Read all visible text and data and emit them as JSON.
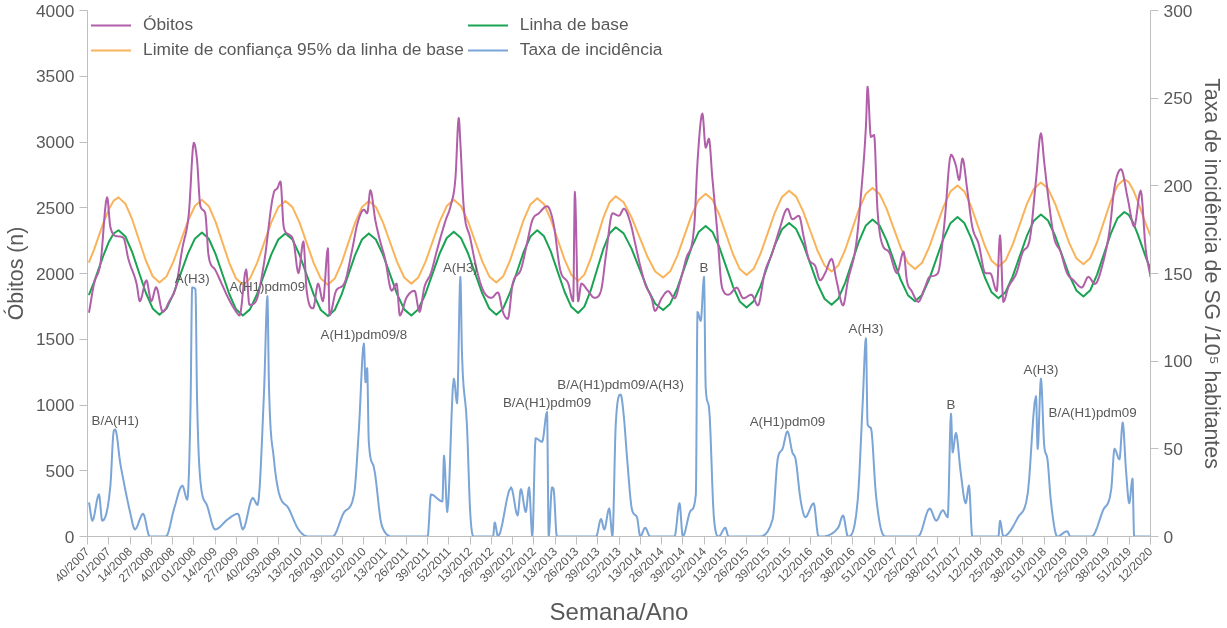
{
  "chart_data": {
    "type": "line",
    "xlabel": "Semana/Ano",
    "ylabel": "Óbitos (n)",
    "y2label": "Taxa de incidência de SG /10⁵ habitantes",
    "xlim": [
      "2007-10-01",
      "2020-03-16"
    ],
    "ylim": [
      0,
      4000
    ],
    "y2lim": [
      0,
      300
    ],
    "yticks": [
      0,
      500,
      1000,
      1500,
      2000,
      2500,
      3000,
      3500,
      4000
    ],
    "y2ticks": [
      0,
      50,
      100,
      150,
      200,
      250,
      300
    ],
    "xticks": [
      {
        "value": "2007-10-01",
        "label": "40/2007"
      },
      {
        "value": "2007-12-31",
        "label": "01/2007"
      },
      {
        "value": "2008-03-31",
        "label": "14/2008"
      },
      {
        "value": "2008-06-30",
        "label": "27/2008"
      },
      {
        "value": "2008-09-29",
        "label": "40/2008"
      },
      {
        "value": "2008-12-29",
        "label": "01/2008"
      },
      {
        "value": "2009-03-30",
        "label": "14/2009"
      },
      {
        "value": "2009-06-29",
        "label": "27/2009"
      },
      {
        "value": "2009-09-28",
        "label": "40/2009"
      },
      {
        "value": "2009-12-28",
        "label": "53/2009"
      },
      {
        "value": "2010-03-29",
        "label": "13/2010"
      },
      {
        "value": "2010-06-28",
        "label": "26/2010"
      },
      {
        "value": "2010-09-27",
        "label": "39/2010"
      },
      {
        "value": "2010-12-27",
        "label": "52/2010"
      },
      {
        "value": "2011-03-28",
        "label": "13/2011"
      },
      {
        "value": "2011-06-27",
        "label": "26/2011"
      },
      {
        "value": "2011-09-26",
        "label": "39/2011"
      },
      {
        "value": "2011-12-26",
        "label": "52/2011"
      },
      {
        "value": "2012-03-26",
        "label": "13/2012"
      },
      {
        "value": "2012-06-25",
        "label": "26/2012"
      },
      {
        "value": "2012-09-24",
        "label": "39/2012"
      },
      {
        "value": "2012-12-24",
        "label": "52/2012"
      },
      {
        "value": "2013-03-25",
        "label": "13/2013"
      },
      {
        "value": "2013-06-24",
        "label": "26/2013"
      },
      {
        "value": "2013-09-23",
        "label": "39/2013"
      },
      {
        "value": "2013-12-23",
        "label": "52/2013"
      },
      {
        "value": "2014-03-24",
        "label": "13/2014"
      },
      {
        "value": "2014-06-23",
        "label": "26/2014"
      },
      {
        "value": "2014-09-22",
        "label": "39/2014"
      },
      {
        "value": "2014-12-22",
        "label": "52/2014"
      },
      {
        "value": "2015-03-23",
        "label": "13/2015"
      },
      {
        "value": "2015-06-22",
        "label": "26/2015"
      },
      {
        "value": "2015-09-21",
        "label": "39/2015"
      },
      {
        "value": "2015-12-21",
        "label": "52/2015"
      },
      {
        "value": "2016-03-21",
        "label": "12/2016"
      },
      {
        "value": "2016-06-20",
        "label": "25/2016"
      },
      {
        "value": "2016-09-19",
        "label": "38/2016"
      },
      {
        "value": "2016-12-19",
        "label": "51/2016"
      },
      {
        "value": "2017-03-20",
        "label": "12/2017"
      },
      {
        "value": "2017-06-19",
        "label": "25/2017"
      },
      {
        "value": "2017-09-18",
        "label": "38/2017"
      },
      {
        "value": "2017-12-18",
        "label": "51/2017"
      },
      {
        "value": "2018-03-19",
        "label": "12/2018"
      },
      {
        "value": "2018-06-18",
        "label": "25/2018"
      },
      {
        "value": "2018-09-17",
        "label": "38/2018"
      },
      {
        "value": "2018-12-17",
        "label": "51/2018"
      },
      {
        "value": "2019-03-18",
        "label": "12/2019"
      },
      {
        "value": "2019-06-17",
        "label": "25/2019"
      },
      {
        "value": "2019-09-16",
        "label": "38/2019"
      },
      {
        "value": "2019-12-16",
        "label": "51/2019"
      },
      {
        "value": "2020-03-16",
        "label": "12/2020"
      }
    ],
    "grid": false,
    "legend": "top left",
    "marker": "none",
    "line_style": "solid",
    "series": [
      {
        "name": "Taxa de incidência",
        "color": "#7ba5d6",
        "axis": "y2",
        "x": [
          "2007-10-08",
          "2007-10-22",
          "2007-11-19",
          "2007-12-03",
          "2008-01-07",
          "2008-01-21",
          "2008-01-28",
          "2008-02-18",
          "2008-03-03",
          "2008-03-31",
          "2008-04-21",
          "2008-05-26",
          "2008-06-23",
          "2008-09-01",
          "2008-10-06",
          "2008-11-10",
          "2008-12-01",
          "2008-12-15",
          "2008-12-22",
          "2009-01-05",
          "2009-01-12",
          "2009-01-26",
          "2009-02-23",
          "2009-03-30",
          "2009-05-25",
          "2009-07-06",
          "2009-07-27",
          "2009-09-07",
          "2009-09-28",
          "2009-10-26",
          "2009-11-09",
          "2009-11-16",
          "2009-12-07",
          "2009-12-28",
          "2010-02-08",
          "2010-03-22",
          "2010-05-03",
          "2010-08-16",
          "2010-10-04",
          "2010-11-15",
          "2010-12-06",
          "2010-12-27",
          "2011-01-03",
          "2011-01-10",
          "2011-01-17",
          "2011-02-07",
          "2011-03-14",
          "2011-05-02",
          "2011-09-26",
          "2011-10-10",
          "2011-11-28",
          "2011-12-05",
          "2011-12-19",
          "2012-01-16",
          "2012-01-30",
          "2012-02-13",
          "2012-02-20",
          "2012-03-12",
          "2012-03-26",
          "2012-04-09",
          "2012-07-02",
          "2012-07-09",
          "2012-07-23",
          "2012-09-17",
          "2012-10-15",
          "2012-10-29",
          "2012-11-19",
          "2012-12-03",
          "2012-12-17",
          "2012-12-31",
          "2013-01-28",
          "2013-02-18",
          "2013-02-25",
          "2013-03-11",
          "2013-03-18",
          "2013-04-01",
          "2013-09-16",
          "2013-10-07",
          "2013-10-21",
          "2013-11-11",
          "2013-11-25",
          "2013-12-09",
          "2013-12-30",
          "2014-01-13",
          "2014-01-27",
          "2014-02-17",
          "2014-03-10",
          "2014-03-24",
          "2014-04-14",
          "2014-05-05",
          "2014-08-18",
          "2014-09-08",
          "2014-09-22",
          "2014-10-27",
          "2014-11-17",
          "2014-11-24",
          "2014-12-08",
          "2014-12-22",
          "2014-12-29",
          "2015-01-12",
          "2015-02-02",
          "2015-02-23",
          "2015-03-23",
          "2015-04-06",
          "2015-08-10",
          "2015-10-12",
          "2015-11-02",
          "2015-11-23",
          "2015-12-14",
          "2016-01-04",
          "2016-01-18",
          "2016-02-08",
          "2016-02-29",
          "2016-04-04",
          "2016-04-25",
          "2016-07-18",
          "2016-08-08",
          "2016-08-29",
          "2016-10-10",
          "2016-10-31",
          "2016-11-14",
          "2016-11-21",
          "2016-12-05",
          "2016-12-26",
          "2017-01-16",
          "2017-02-06",
          "2017-06-26",
          "2017-08-14",
          "2017-09-11",
          "2017-10-09",
          "2017-10-30",
          "2017-11-13",
          "2017-11-20",
          "2017-12-04",
          "2017-12-25",
          "2018-01-15",
          "2018-01-29",
          "2018-02-12",
          "2018-06-04",
          "2018-06-11",
          "2018-06-25",
          "2018-08-27",
          "2018-10-08",
          "2018-11-12",
          "2018-11-19",
          "2018-12-03",
          "2018-12-17",
          "2018-12-31",
          "2019-01-14",
          "2019-02-11",
          "2019-03-25",
          "2019-04-08",
          "2019-07-08",
          "2019-08-26",
          "2019-09-30",
          "2019-10-14",
          "2019-11-04",
          "2019-11-18",
          "2019-12-02",
          "2019-12-16",
          "2019-12-30",
          "2020-01-06",
          "2020-03-16"
        ],
        "values": [
          19,
          9,
          24,
          9,
          29,
          60,
          61,
          42,
          32,
          14,
          4,
          13,
          0,
          0,
          16,
          29,
          21,
          74,
          142,
          141,
          78,
          32,
          18,
          4,
          10,
          13,
          4,
          22,
          18,
          84,
          137,
          84,
          44,
          25,
          16,
          4,
          0,
          0,
          14,
          24,
          62,
          110,
          88,
          96,
          54,
          40,
          6,
          0,
          0,
          24,
          20,
          46,
          14,
          90,
          76,
          148,
          104,
          64,
          14,
          0,
          0,
          8,
          0,
          28,
          12,
          27,
          14,
          28,
          0,
          56,
          54,
          71,
          0,
          28,
          27,
          0,
          0,
          10,
          4,
          16,
          0,
          64,
          81,
          68,
          44,
          15,
          11,
          0,
          5,
          0,
          0,
          19,
          0,
          15,
          24,
          128,
          123,
          148,
          85,
          74,
          11,
          0,
          5,
          0,
          0,
          10,
          44,
          50,
          60,
          48,
          44,
          21,
          11,
          19,
          0,
          5,
          12,
          0,
          21,
          76,
          113,
          64,
          62,
          25,
          5,
          0,
          0,
          16,
          9,
          15,
          11,
          70,
          48,
          59,
          36,
          19,
          29,
          0,
          0,
          9,
          0,
          11,
          25,
          80,
          50,
          90,
          52,
          44,
          21,
          0,
          3,
          0,
          0,
          15,
          27,
          50,
          44,
          65,
          38,
          19,
          33,
          0,
          0
        ]
      },
      {
        "name": "Linha de base",
        "color": "#1aa352",
        "x": [
          "2007-10-08",
          "2008-02-11",
          "2008-08-04",
          "2009-02-02",
          "2009-07-27",
          "2010-01-25",
          "2010-07-26",
          "2011-01-17",
          "2011-07-18",
          "2012-01-16",
          "2012-07-16",
          "2013-01-07",
          "2013-07-01",
          "2013-12-09",
          "2014-06-30",
          "2014-12-29",
          "2015-06-22",
          "2015-12-21",
          "2016-06-20",
          "2016-12-12",
          "2017-06-12",
          "2017-12-11",
          "2018-06-04",
          "2018-12-03",
          "2019-06-03",
          "2019-11-25",
          "2020-03-16"
        ],
        "values": [
          1842,
          2329,
          1687,
          2311,
          1681,
          2305,
          1676,
          2305,
          1681,
          2317,
          1687,
          2329,
          1700,
          2352,
          1723,
          2362,
          1742,
          2384,
          1762,
          2411,
          1789,
          2430,
          1811,
          2449,
          1825,
          2468,
          2035
        ]
      },
      {
        "name": "Limite de confiança 95% da linha de base",
        "color": "#f9b35a",
        "x": [
          "2007-10-08",
          "2008-02-11",
          "2008-08-04",
          "2009-02-02",
          "2009-07-27",
          "2010-01-25",
          "2010-07-26",
          "2011-01-17",
          "2011-07-18",
          "2012-01-16",
          "2012-07-16",
          "2013-01-07",
          "2013-07-01",
          "2013-12-09",
          "2014-06-30",
          "2014-12-29",
          "2015-06-22",
          "2015-12-21",
          "2016-06-20",
          "2016-12-12",
          "2017-06-12",
          "2017-12-11",
          "2018-06-04",
          "2018-12-03",
          "2019-06-03",
          "2019-11-25",
          "2020-03-16"
        ],
        "values": [
          2088,
          2579,
          1931,
          2560,
          1914,
          2552,
          1914,
          2552,
          1923,
          2560,
          1931,
          2573,
          1944,
          2587,
          1969,
          2607,
          1988,
          2630,
          2016,
          2651,
          2035,
          2670,
          2051,
          2692,
          2070,
          2717,
          2288
        ]
      },
      {
        "name": "Óbitos",
        "color": "#b05fa8",
        "x": [
          "2007-10-08",
          "2007-10-29",
          "2007-11-26",
          "2007-12-24",
          "2008-01-07",
          "2008-02-04",
          "2008-03-03",
          "2008-03-24",
          "2008-04-28",
          "2008-05-12",
          "2008-06-09",
          "2008-06-30",
          "2008-07-21",
          "2008-08-18",
          "2008-09-15",
          "2008-10-13",
          "2008-11-10",
          "2008-12-08",
          "2008-12-29",
          "2009-01-12",
          "2009-01-26",
          "2009-02-16",
          "2009-03-02",
          "2009-03-30",
          "2009-04-27",
          "2009-05-25",
          "2009-06-29",
          "2009-07-13",
          "2009-08-10",
          "2009-08-24",
          "2009-09-21",
          "2009-10-26",
          "2009-12-07",
          "2009-12-21",
          "2010-01-04",
          "2010-01-18",
          "2010-02-08",
          "2010-03-01",
          "2010-03-22",
          "2010-04-12",
          "2010-04-26",
          "2010-05-24",
          "2010-06-14",
          "2010-07-05",
          "2010-07-26",
          "2010-08-02",
          "2010-08-30",
          "2010-10-04",
          "2010-11-08",
          "2010-11-29",
          "2010-12-27",
          "2011-01-10",
          "2011-01-24",
          "2011-02-14",
          "2011-03-07",
          "2011-03-28",
          "2011-04-25",
          "2011-05-16",
          "2011-05-30",
          "2011-06-27",
          "2011-08-01",
          "2011-08-22",
          "2011-09-12",
          "2011-10-10",
          "2011-11-07",
          "2011-12-12",
          "2012-01-02",
          "2012-01-23",
          "2012-02-06",
          "2012-02-13",
          "2012-02-27",
          "2012-03-26",
          "2012-04-23",
          "2012-05-21",
          "2012-06-25",
          "2012-07-23",
          "2012-08-13",
          "2012-09-03",
          "2012-09-24",
          "2012-10-29",
          "2012-11-26",
          "2012-12-17",
          "2013-01-14",
          "2013-02-18",
          "2013-03-18",
          "2013-04-15",
          "2013-05-20",
          "2013-06-10",
          "2013-06-17",
          "2013-07-01",
          "2013-07-15",
          "2013-08-12",
          "2013-09-09",
          "2013-10-07",
          "2013-10-28",
          "2013-11-25",
          "2013-12-23",
          "2014-01-13",
          "2014-02-10",
          "2014-03-03",
          "2014-03-24",
          "2014-04-14",
          "2014-05-12",
          "2014-05-26",
          "2014-06-23",
          "2014-07-21",
          "2014-08-18",
          "2014-09-08",
          "2014-10-06",
          "2014-11-10",
          "2014-11-24",
          "2014-12-15",
          "2014-12-29",
          "2015-01-12",
          "2015-01-26",
          "2015-02-16",
          "2015-03-09",
          "2015-04-06",
          "2015-05-11",
          "2015-06-08",
          "2015-07-13",
          "2015-08-10",
          "2015-09-07",
          "2015-10-12",
          "2015-11-09",
          "2015-12-14",
          "2016-01-04",
          "2016-02-01",
          "2016-02-22",
          "2016-03-14",
          "2016-04-11",
          "2016-05-02",
          "2016-05-23",
          "2016-06-20",
          "2016-07-11",
          "2016-08-08",
          "2016-08-29",
          "2016-10-03",
          "2016-10-24",
          "2016-11-14",
          "2016-11-21",
          "2016-12-05",
          "2016-12-19",
          "2017-01-02",
          "2017-01-23",
          "2017-02-20",
          "2017-03-27",
          "2017-04-24",
          "2017-05-08",
          "2017-05-29",
          "2017-06-26",
          "2017-07-24",
          "2017-08-14",
          "2017-09-18",
          "2017-10-16",
          "2017-11-13",
          "2017-12-04",
          "2017-12-18",
          "2018-01-01",
          "2018-01-22",
          "2018-02-12",
          "2018-03-12",
          "2018-04-09",
          "2018-04-30",
          "2018-05-28",
          "2018-06-11",
          "2018-06-25",
          "2018-07-16",
          "2018-08-20",
          "2018-09-17",
          "2018-10-15",
          "2018-11-12",
          "2018-12-03",
          "2018-12-17",
          "2018-12-31",
          "2019-01-28",
          "2019-02-25",
          "2019-03-25",
          "2019-04-22",
          "2019-05-27",
          "2019-06-24",
          "2019-07-22",
          "2019-08-26",
          "2019-09-23",
          "2019-10-14",
          "2019-11-11",
          "2019-12-09",
          "2020-01-06",
          "2020-02-03",
          "2020-02-24",
          "2020-03-16"
        ],
        "values": [
          1708,
          1923,
          2083,
          2579,
          2351,
          2284,
          2271,
          2110,
          1923,
          1789,
          1949,
          1789,
          1896,
          1708,
          1789,
          1896,
          2191,
          2458,
          2994,
          2860,
          2512,
          2458,
          2137,
          2030,
          1923,
          1815,
          1708,
          1681,
          2030,
          1762,
          1789,
          2083,
          2619,
          2646,
          2700,
          2351,
          2298,
          2244,
          2003,
          2244,
          1869,
          1735,
          1923,
          1789,
          2191,
          1681,
          1869,
          1923,
          2191,
          2378,
          2485,
          2458,
          2633,
          2405,
          2244,
          2110,
          1869,
          1923,
          1681,
          1815,
          1869,
          1708,
          1896,
          2003,
          2191,
          2405,
          2512,
          2726,
          3182,
          2994,
          2512,
          2271,
          2030,
          1869,
          1815,
          1856,
          1708,
          1655,
          1923,
          2030,
          2244,
          2405,
          2458,
          2512,
          2378,
          2030,
          1923,
          1789,
          2619,
          1789,
          1923,
          1869,
          1815,
          1869,
          2137,
          2458,
          2439,
          2493,
          2384,
          2221,
          2057,
          1920,
          1811,
          1716,
          1811,
          1866,
          1811,
          1920,
          2111,
          2357,
          2848,
          3216,
          2957,
          3025,
          2739,
          2330,
          1893,
          1839,
          1893,
          1811,
          1839,
          1757,
          2002,
          2166,
          2330,
          2493,
          2412,
          2439,
          2275,
          2111,
          2057,
          1948,
          2002,
          2111,
          1948,
          1757,
          1948,
          2221,
          2603,
          3121,
          3421,
          3039,
          3053,
          2493,
          2221,
          2166,
          2002,
          2166,
          1948,
          1866,
          1784,
          1893,
          1975,
          2002,
          2384,
          2903,
          2821,
          2712,
          2875,
          2630,
          2357,
          2221,
          2002,
          2002,
          1866,
          2289,
          1784,
          1893,
          2002,
          2166,
          2248,
          2712,
          3066,
          2848,
          2630,
          2275,
          2166,
          2002,
          1948,
          1893,
          1975,
          1920,
          2084,
          2330,
          2657,
          2793,
          2575,
          2357,
          2630,
          2193,
          1975
        ]
      }
    ],
    "annotations": [
      {
        "text": "B/A(H1)",
        "x": "2008-01-28",
        "y": 813
      },
      {
        "text": "A(H3)",
        "x": "2008-12-22",
        "y": 1893
      },
      {
        "text": "A(H1)pdm09",
        "x": "2009-11-09",
        "y": 1827
      },
      {
        "text": "A(H1)pdm09/8",
        "x": "2010-12-27",
        "y": 1467
      },
      {
        "text": "A(H3)",
        "x": "2012-02-13",
        "y": 1973
      },
      {
        "text": "B/A(H1)pdm09",
        "x": "2013-02-18",
        "y": 947
      },
      {
        "text": "B/A(H1)pdm09/A(H3)",
        "x": "2013-12-30",
        "y": 1080
      },
      {
        "text": "B",
        "x": "2014-12-22",
        "y": 1973
      },
      {
        "text": "A(H1)pdm09",
        "x": "2015-12-14",
        "y": 800
      },
      {
        "text": "A(H3)",
        "x": "2016-11-14",
        "y": 1507
      },
      {
        "text": "B",
        "x": "2017-11-13",
        "y": 933
      },
      {
        "text": "A(H3)",
        "x": "2018-12-03",
        "y": 1200
      },
      {
        "text": "B/A(H1)pdm09",
        "x": "2019-11-18",
        "y": 867
      }
    ]
  }
}
